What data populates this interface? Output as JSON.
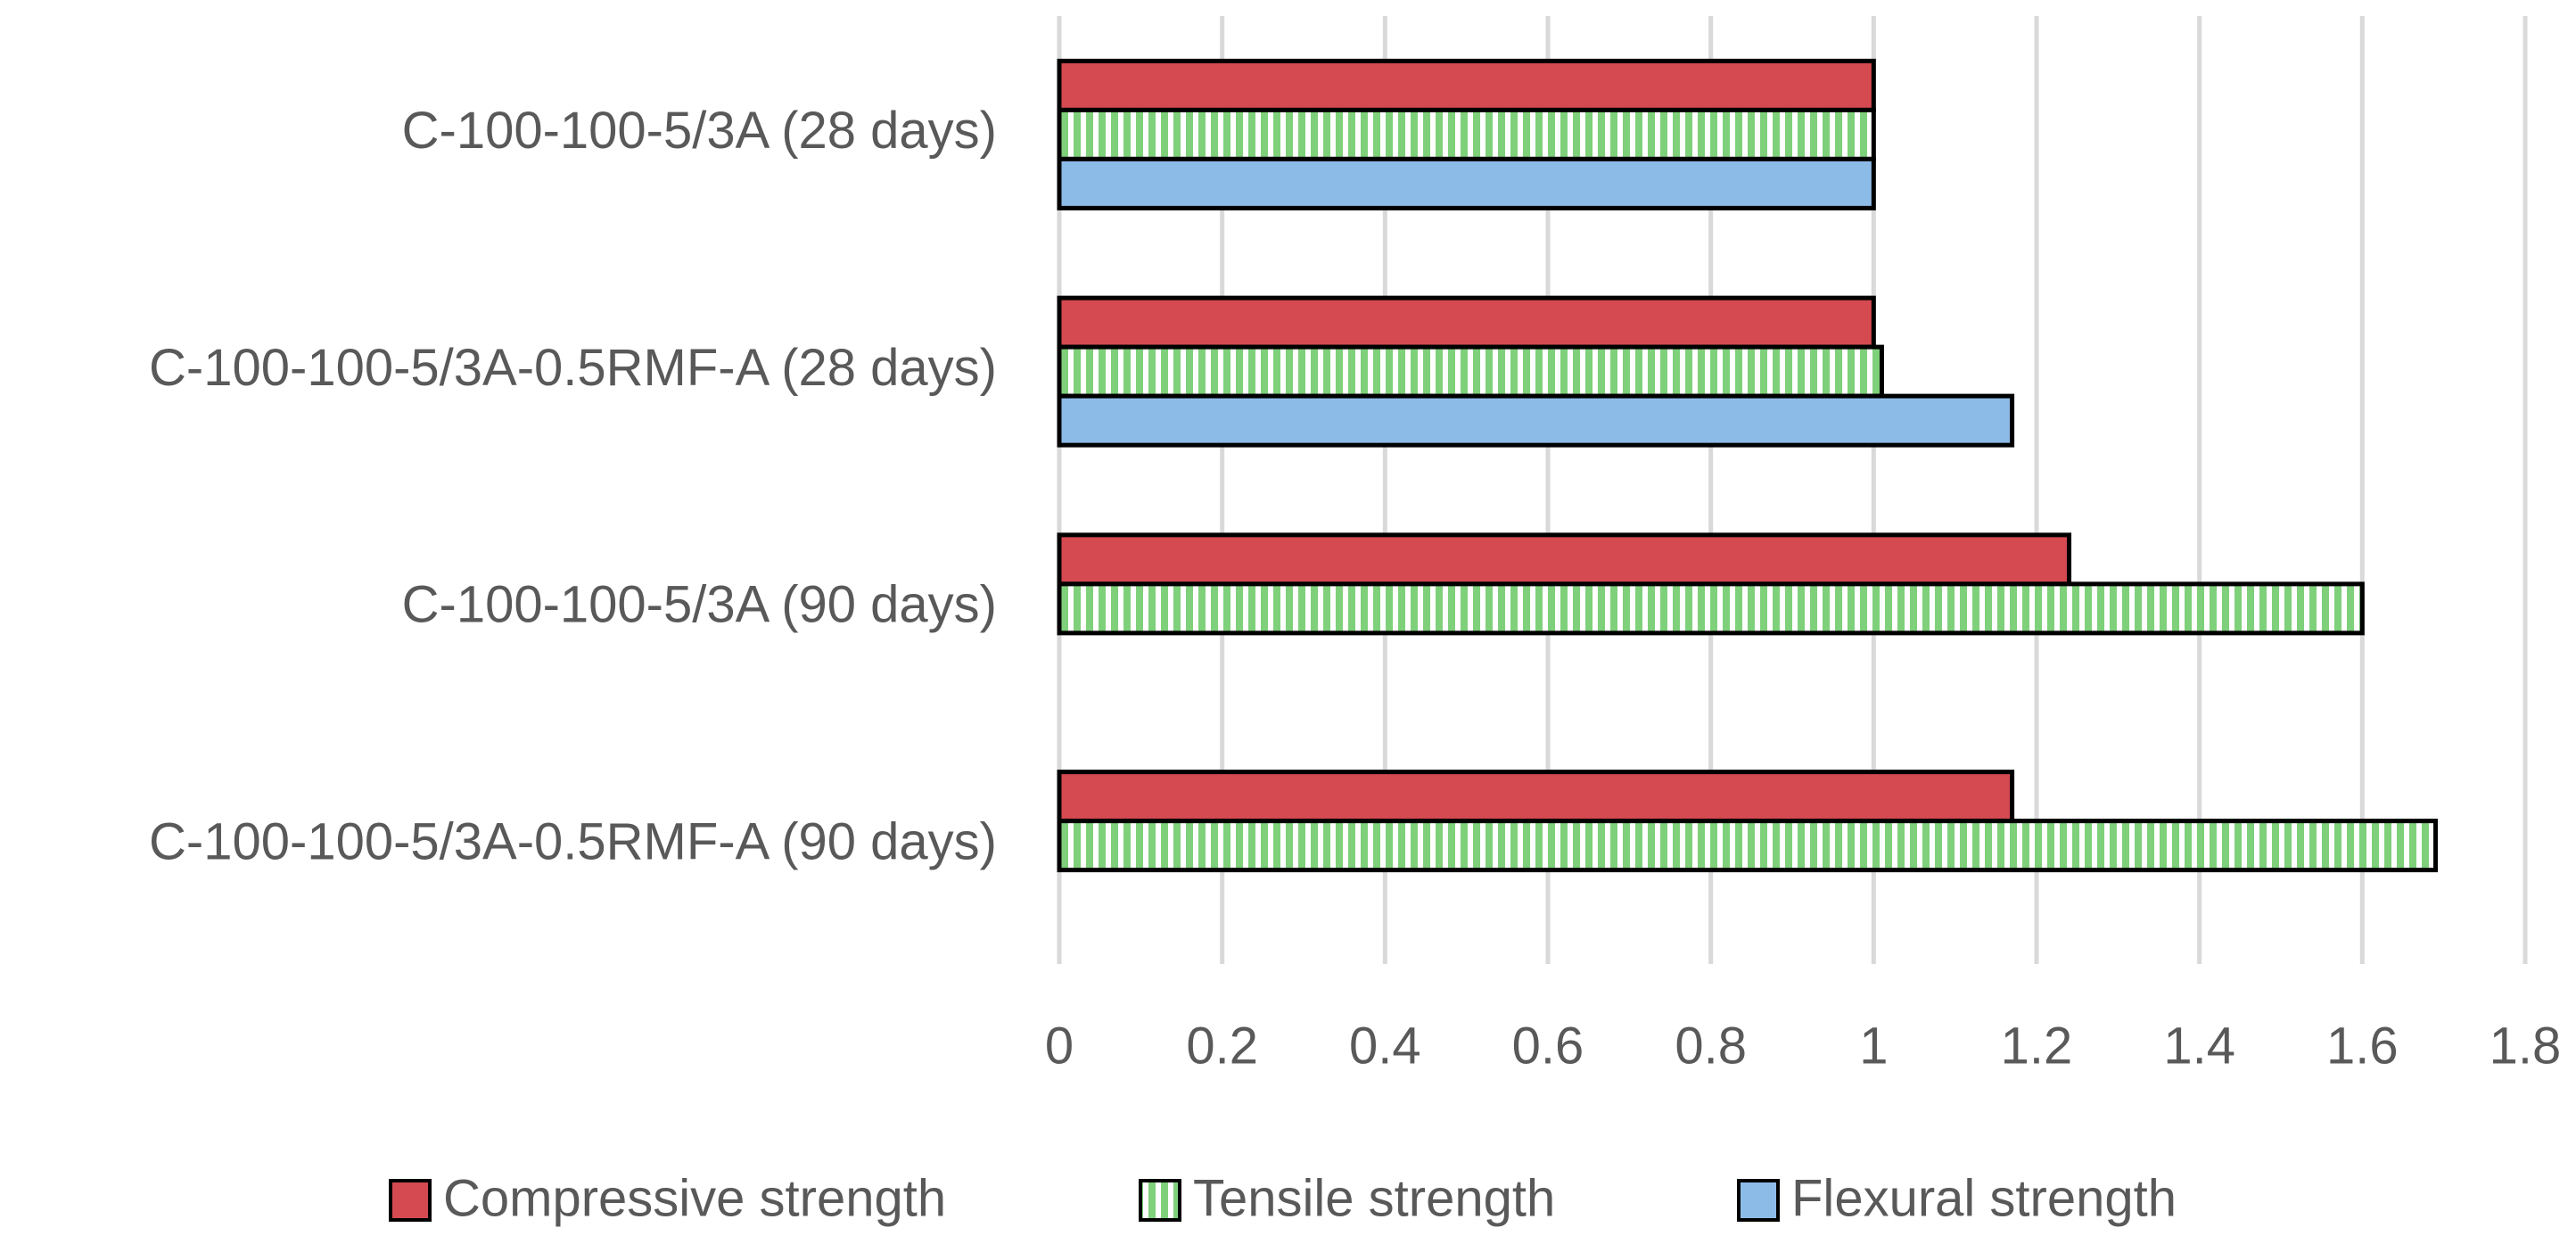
{
  "chart_data": {
    "type": "hbar",
    "categories": [
      "C-100-100-5/3A (28 days)",
      "C-100-100-5/3A-0.5RMF-A (28 days)",
      "C-100-100-5/3A (90 days)",
      "C-100-100-5/3A-0.5RMF-A (90 days)"
    ],
    "series": [
      {
        "name": "Compressive strength",
        "color": "#d44a50",
        "values": [
          1,
          1,
          1.24,
          1.17
        ]
      },
      {
        "name": "Tensile strength",
        "color": "#7fd07a",
        "hatch": "vertical",
        "values": [
          1,
          1.01,
          1.6,
          1.69
        ]
      },
      {
        "name": "Flexural strength",
        "color": "#8dbbe8",
        "values": [
          1,
          1.17,
          null,
          null
        ]
      }
    ],
    "xlim": [
      0,
      1.8
    ],
    "xticks": [
      0,
      0.2,
      0.4,
      0.6,
      0.8,
      1,
      1.2,
      1.4,
      1.6,
      1.8
    ],
    "grid": true,
    "legend": "bottom"
  }
}
